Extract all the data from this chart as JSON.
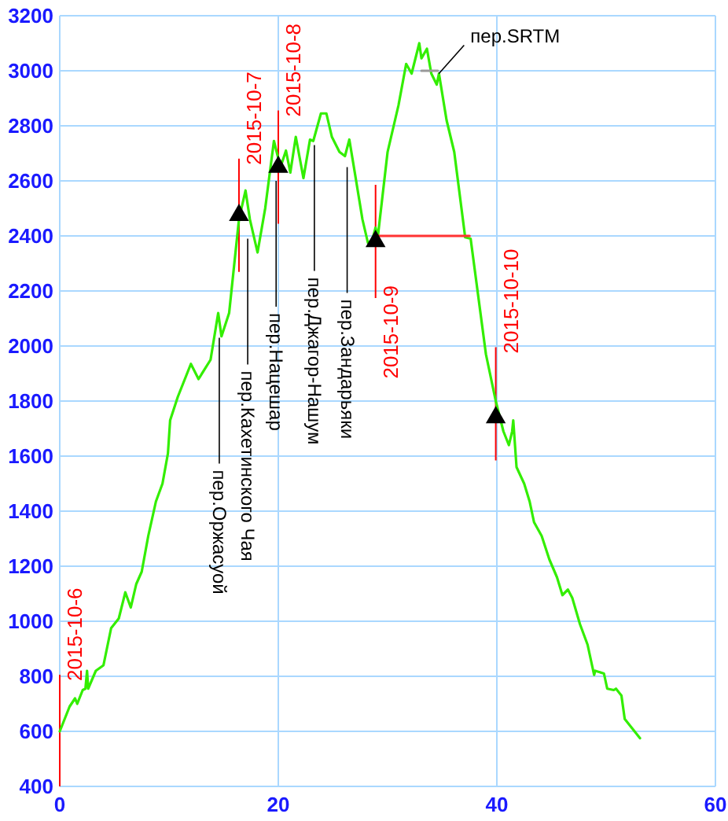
{
  "chart_data": {
    "type": "line",
    "xlim": [
      0,
      60
    ],
    "ylim": [
      400,
      3200
    ],
    "xticks": [
      0,
      20,
      40,
      60
    ],
    "yticks": [
      400,
      600,
      800,
      1000,
      1200,
      1400,
      1600,
      1800,
      2000,
      2200,
      2400,
      2600,
      2800,
      3000,
      3200
    ],
    "grid": true,
    "series": [
      {
        "type": "line",
        "color": "#33ee00",
        "x": [
          0,
          0.9,
          1.4,
          1.6,
          2.1,
          2.35,
          2.5,
          2.6,
          3.3,
          4.0,
          4.7,
          5.4,
          6.0,
          6.5,
          7.0,
          7.5,
          8.1,
          8.8,
          9.4,
          9.9,
          10.1,
          10.8,
          12.0,
          12.7,
          13.8,
          14.5,
          14.8,
          15.5,
          16.4,
          17.0,
          17.4,
          18.1,
          18.8,
          19.6,
          20.2,
          20.7,
          21.1,
          21.6,
          22.3,
          22.9,
          23.2,
          23.9,
          24.4,
          24.9,
          25.6,
          26.1,
          26.5,
          27.0,
          27.7,
          28.2,
          28.6,
          28.9,
          29.1,
          30.0,
          31.0,
          31.7,
          32.2,
          32.9,
          33.1,
          33.6,
          34.0,
          34.5,
          34.7,
          35.4,
          36.1,
          37.1,
          37.6,
          39.0,
          39.9,
          40.6,
          41.1,
          41.4,
          41.5,
          41.8,
          42.5,
          43.0,
          43.4,
          44.1,
          44.8,
          45.5,
          46.0,
          46.5,
          46.9,
          47.6,
          48.3,
          48.9,
          49.0,
          49.8,
          50.1,
          50.7,
          50.9,
          51.4,
          51.7,
          52.3,
          53.1
        ],
        "values": [
          600,
          690,
          720,
          700,
          750,
          755,
          820,
          755,
          820,
          840,
          975,
          1010,
          1105,
          1050,
          1135,
          1180,
          1310,
          1435,
          1500,
          1610,
          1730,
          1815,
          1935,
          1880,
          1950,
          2120,
          2035,
          2120,
          2460,
          2565,
          2460,
          2340,
          2500,
          2745,
          2650,
          2710,
          2630,
          2760,
          2610,
          2750,
          2745,
          2845,
          2845,
          2760,
          2705,
          2690,
          2750,
          2630,
          2460,
          2375,
          2385,
          2430,
          2395,
          2705,
          2875,
          3025,
          2990,
          3100,
          3045,
          3080,
          2990,
          2950,
          2990,
          2820,
          2705,
          2395,
          2390,
          1970,
          1800,
          1690,
          1640,
          1690,
          1730,
          1560,
          1500,
          1435,
          1360,
          1310,
          1225,
          1160,
          1095,
          1115,
          1085,
          990,
          915,
          805,
          820,
          810,
          755,
          750,
          755,
          730,
          645,
          615,
          575
        ]
      },
      {
        "type": "scatter",
        "marker": "triangle",
        "color": "#000000",
        "x": [
          16.4,
          20.0,
          28.9,
          39.9
        ],
        "values": [
          2475,
          2650,
          2380,
          1740
        ]
      },
      {
        "type": "line",
        "color": "#ff3333",
        "x": [
          28.9,
          37.5
        ],
        "values": [
          2400,
          2400
        ]
      },
      {
        "type": "line",
        "color": "#999999",
        "x": [
          33.1,
          34.6
        ],
        "values": [
          3000,
          3000
        ]
      }
    ],
    "ref_lines": [
      {
        "axis": "x",
        "value": 0,
        "color": "#ff0000"
      },
      {
        "axis": "x",
        "value": 16.4,
        "color": "#ff0000"
      },
      {
        "axis": "x",
        "value": 20.0,
        "color": "#ff0000"
      },
      {
        "axis": "x",
        "value": 28.9,
        "color": "#ff0000"
      },
      {
        "axis": "x",
        "value": 39.9,
        "color": "#ff0000"
      }
    ],
    "annotations": [
      {
        "text": "2015-10-6",
        "x": 0,
        "y": 600
      },
      {
        "text": "2015-10-7",
        "x": 16.4,
        "y": 2475
      },
      {
        "text": "2015-10-8",
        "x": 20.0,
        "y": 2650
      },
      {
        "text": "2015-10-9",
        "x": 28.9,
        "y": 2380
      },
      {
        "text": "2015-10-10",
        "x": 39.9,
        "y": 1790
      },
      {
        "text": "пер.Оржасуой",
        "x": 14.6,
        "y": 2030
      },
      {
        "text": "пер.Кахетинского Чая",
        "x": 17.2,
        "y": 2390
      },
      {
        "text": "пер.Нацешар",
        "x": 19.8,
        "y": 2600
      },
      {
        "text": "пер.Джагор-Нашум",
        "x": 23.3,
        "y": 2730
      },
      {
        "text": "пер.Зандарьяки",
        "x": 26.3,
        "y": 2650
      },
      {
        "text": "пер.SRTM",
        "x": 34.7,
        "y": 2990
      }
    ]
  }
}
